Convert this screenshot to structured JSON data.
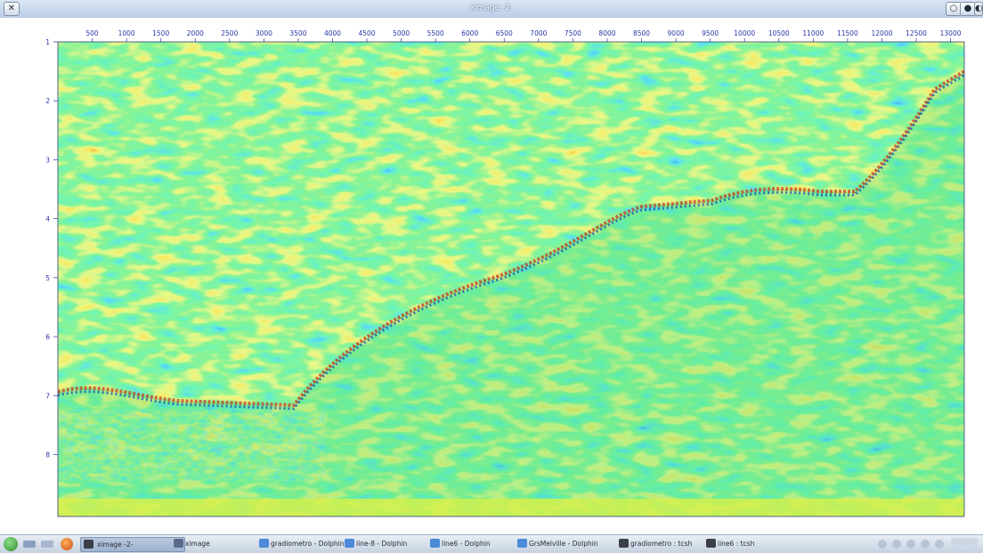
{
  "window": {
    "title": "ximage -2-",
    "close_glyph": "✕",
    "right_controls": [
      "○",
      "●",
      "◐"
    ]
  },
  "plot": {
    "x_ticks": [
      "500",
      "1000",
      "1500",
      "2000",
      "2500",
      "3000",
      "3500",
      "4000",
      "4500",
      "5000",
      "5500",
      "6000",
      "6500",
      "7000",
      "7500",
      "8000",
      "8500",
      "9000",
      "9500",
      "10000",
      "10500",
      "11000",
      "11500",
      "12000",
      "12500",
      "13000"
    ],
    "y_ticks": [
      "1",
      "2",
      "3",
      "4",
      "5",
      "6",
      "7",
      "8"
    ],
    "x_tick_values": [
      500,
      1000,
      1500,
      2000,
      2500,
      3000,
      3500,
      4000,
      4500,
      5000,
      5500,
      6000,
      6500,
      7000,
      7500,
      8000,
      8500,
      9000,
      9500,
      10000,
      10500,
      11000,
      11500,
      12000,
      12500,
      13000
    ],
    "y_tick_values": [
      1,
      2,
      3,
      4,
      5,
      6,
      7,
      8
    ],
    "x_range": [
      0,
      13200
    ],
    "y_range": [
      1,
      9.05
    ],
    "colormap": [
      "#1030c8",
      "#20b8e8",
      "#40e870",
      "#c8f040",
      "#f0d020",
      "#e84018"
    ],
    "background_color": "#38d470"
  },
  "taskbar": {
    "items": [
      {
        "label": "ximage -2-",
        "icon": "terminal-icon",
        "active": true
      },
      {
        "label": "ximage",
        "icon": "ximage-icon",
        "active": false
      },
      {
        "label": "gradiometro - Dolphin",
        "icon": "folder-icon",
        "active": false
      },
      {
        "label": "line-8 - Dolphin",
        "icon": "folder-icon",
        "active": false
      },
      {
        "label": "line6 - Dolphin",
        "icon": "folder-icon",
        "active": false
      },
      {
        "label": "GrsMelville - Dolphin",
        "icon": "folder-icon",
        "active": false
      },
      {
        "label": "gradiometro : tcsh",
        "icon": "terminal-icon",
        "active": false
      },
      {
        "label": "line6 : tcsh",
        "icon": "terminal-icon",
        "active": false
      }
    ]
  }
}
